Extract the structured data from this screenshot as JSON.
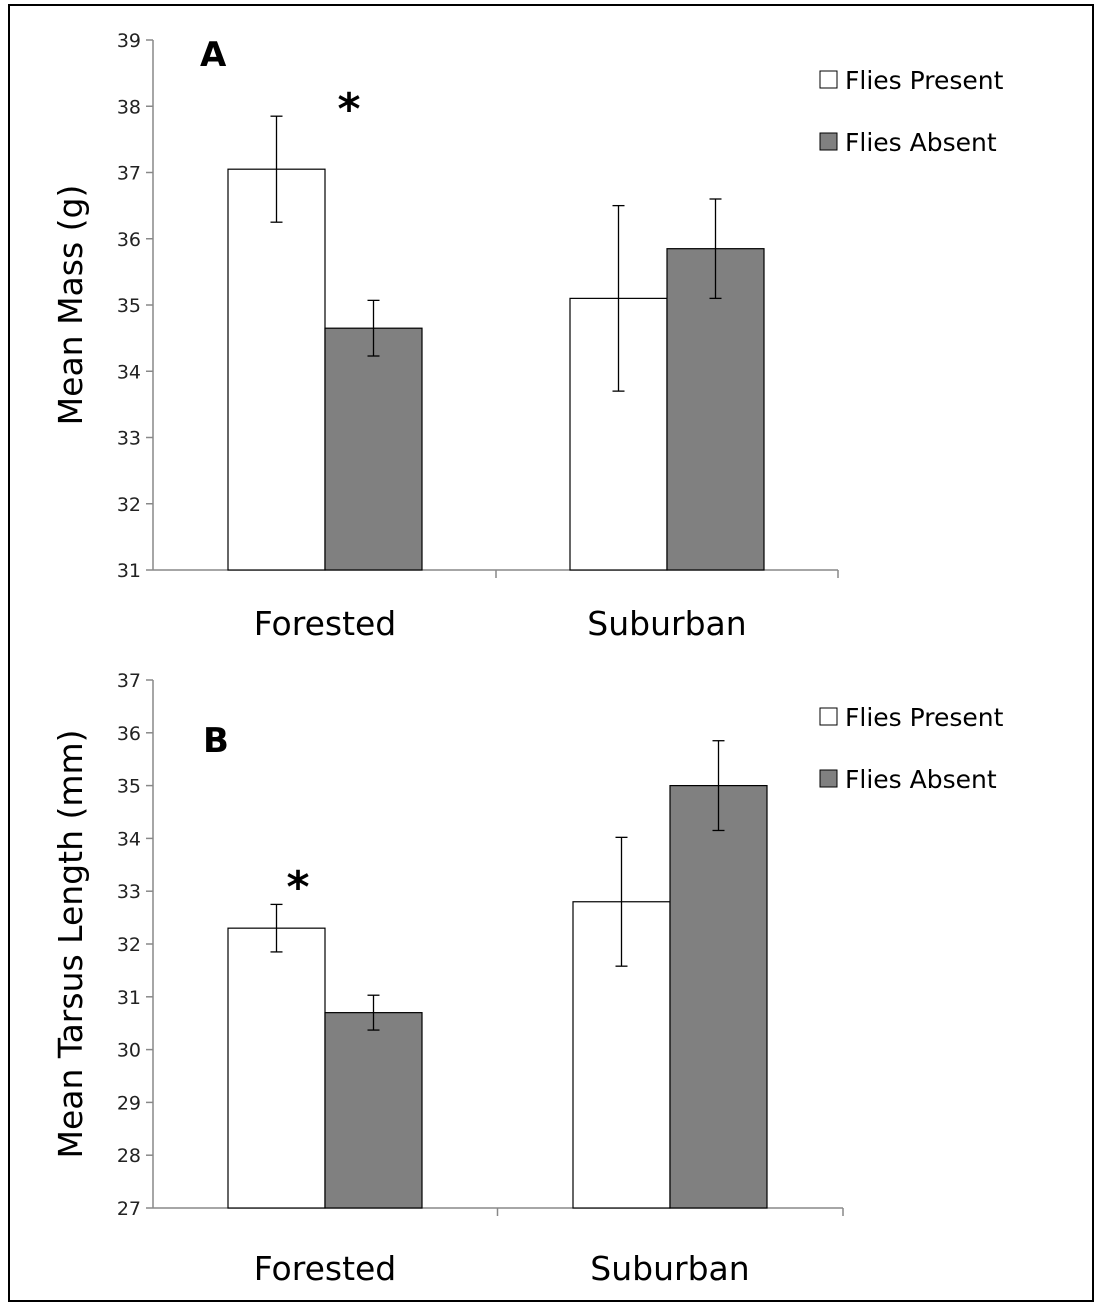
{
  "chart_data": [
    {
      "type": "bar",
      "panel_label": "A",
      "categories": [
        "Forested",
        "Suburban"
      ],
      "series": [
        {
          "name": "Flies Present",
          "color": "#ffffff",
          "values": [
            37.05,
            35.1
          ],
          "errors": [
            0.8,
            1.4
          ]
        },
        {
          "name": "Flies Absent",
          "color": "#808080",
          "values": [
            34.65,
            35.85
          ],
          "errors": [
            0.42,
            0.75
          ]
        }
      ],
      "ylabel": "Mean Mass (g)",
      "ylim": [
        31,
        39
      ],
      "yticks": [
        "31",
        "32",
        "33",
        "34",
        "35",
        "36",
        "37",
        "38",
        "39"
      ],
      "annotations": [
        {
          "text": "*",
          "category": "Forested"
        }
      ],
      "legend_position": "top-right",
      "grid": false
    },
    {
      "type": "bar",
      "panel_label": "B",
      "categories": [
        "Forested",
        "Suburban"
      ],
      "series": [
        {
          "name": "Flies Present",
          "color": "#ffffff",
          "values": [
            32.3,
            32.8
          ],
          "errors": [
            0.45,
            1.22
          ]
        },
        {
          "name": "Flies Absent",
          "color": "#808080",
          "values": [
            30.7,
            35.0
          ],
          "errors": [
            0.33,
            0.85
          ]
        }
      ],
      "ylabel": "Mean Tarsus Length (mm)",
      "ylim": [
        27,
        37
      ],
      "yticks": [
        "27",
        "28",
        "29",
        "30",
        "31",
        "32",
        "33",
        "34",
        "35",
        "36",
        "37"
      ],
      "annotations": [
        {
          "text": "*",
          "category": "Forested"
        }
      ],
      "legend_position": "top-right",
      "grid": false
    }
  ]
}
